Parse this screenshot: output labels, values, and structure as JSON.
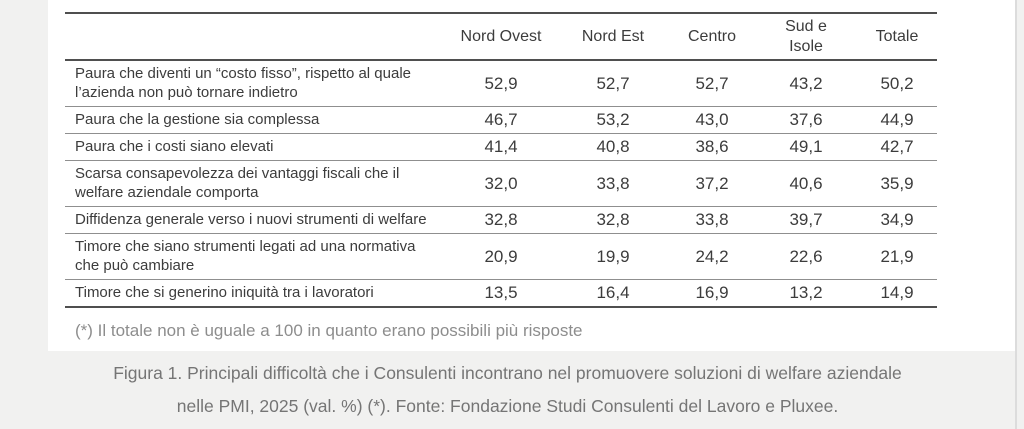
{
  "colors": {
    "page_background": "#f1f1f0",
    "panel_background": "#ffffff",
    "table_text": "#3c3c3c",
    "border_dark": "#4f4f4f",
    "border_light": "#8f8f8f",
    "footnote_text": "#8d8d8d",
    "caption_text": "#757575"
  },
  "chart_data": {
    "type": "table",
    "title": "Figura 1. Principali difficoltà che i Consulenti incontrano nel promuovere soluzioni di welfare aziendale nelle PMI, 2025 (val. %) (*). Fonte: Fondazione Studi Consulenti del Lavoro e Pluxee.",
    "columns": [
      "Nord Ovest",
      "Nord Est",
      "Centro",
      "Sud e Isole",
      "Totale"
    ],
    "rows": [
      {
        "label": "Paura che diventi un “costo fisso”, rispetto al quale l’azienda non può tornare indietro",
        "values": [
          "52,9",
          "52,7",
          "52,7",
          "43,2",
          "50,2"
        ]
      },
      {
        "label": "Paura che la gestione sia complessa",
        "values": [
          "46,7",
          "53,2",
          "43,0",
          "37,6",
          "44,9"
        ]
      },
      {
        "label": "Paura che i costi siano elevati",
        "values": [
          "41,4",
          "40,8",
          "38,6",
          "49,1",
          "42,7"
        ]
      },
      {
        "label": "Scarsa consapevolezza dei vantaggi fiscali che il welfare aziendale comporta",
        "values": [
          "32,0",
          "33,8",
          "37,2",
          "40,6",
          "35,9"
        ]
      },
      {
        "label": "Diffidenza generale verso i nuovi strumenti di welfare",
        "values": [
          "32,8",
          "32,8",
          "33,8",
          "39,7",
          "34,9"
        ]
      },
      {
        "label": "Timore che siano strumenti legati ad una normativa che può cambiare",
        "values": [
          "20,9",
          "19,9",
          "24,2",
          "22,6",
          "21,9"
        ]
      },
      {
        "label": "Timore che si generino iniquità tra i lavoratori",
        "values": [
          "13,5",
          "16,4",
          "16,9",
          "13,2",
          "14,9"
        ]
      }
    ],
    "footnote": "(*) Il totale non è uguale a 100 in quanto erano possibili più risposte"
  },
  "caption": {
    "line1": "Figura 1. Principali difficoltà che i Consulenti incontrano nel promuovere soluzioni di welfare aziendale",
    "line2": "nelle PMI, 2025 (val. %) (*). Fonte: Fondazione Studi Consulenti del Lavoro e Pluxee."
  }
}
